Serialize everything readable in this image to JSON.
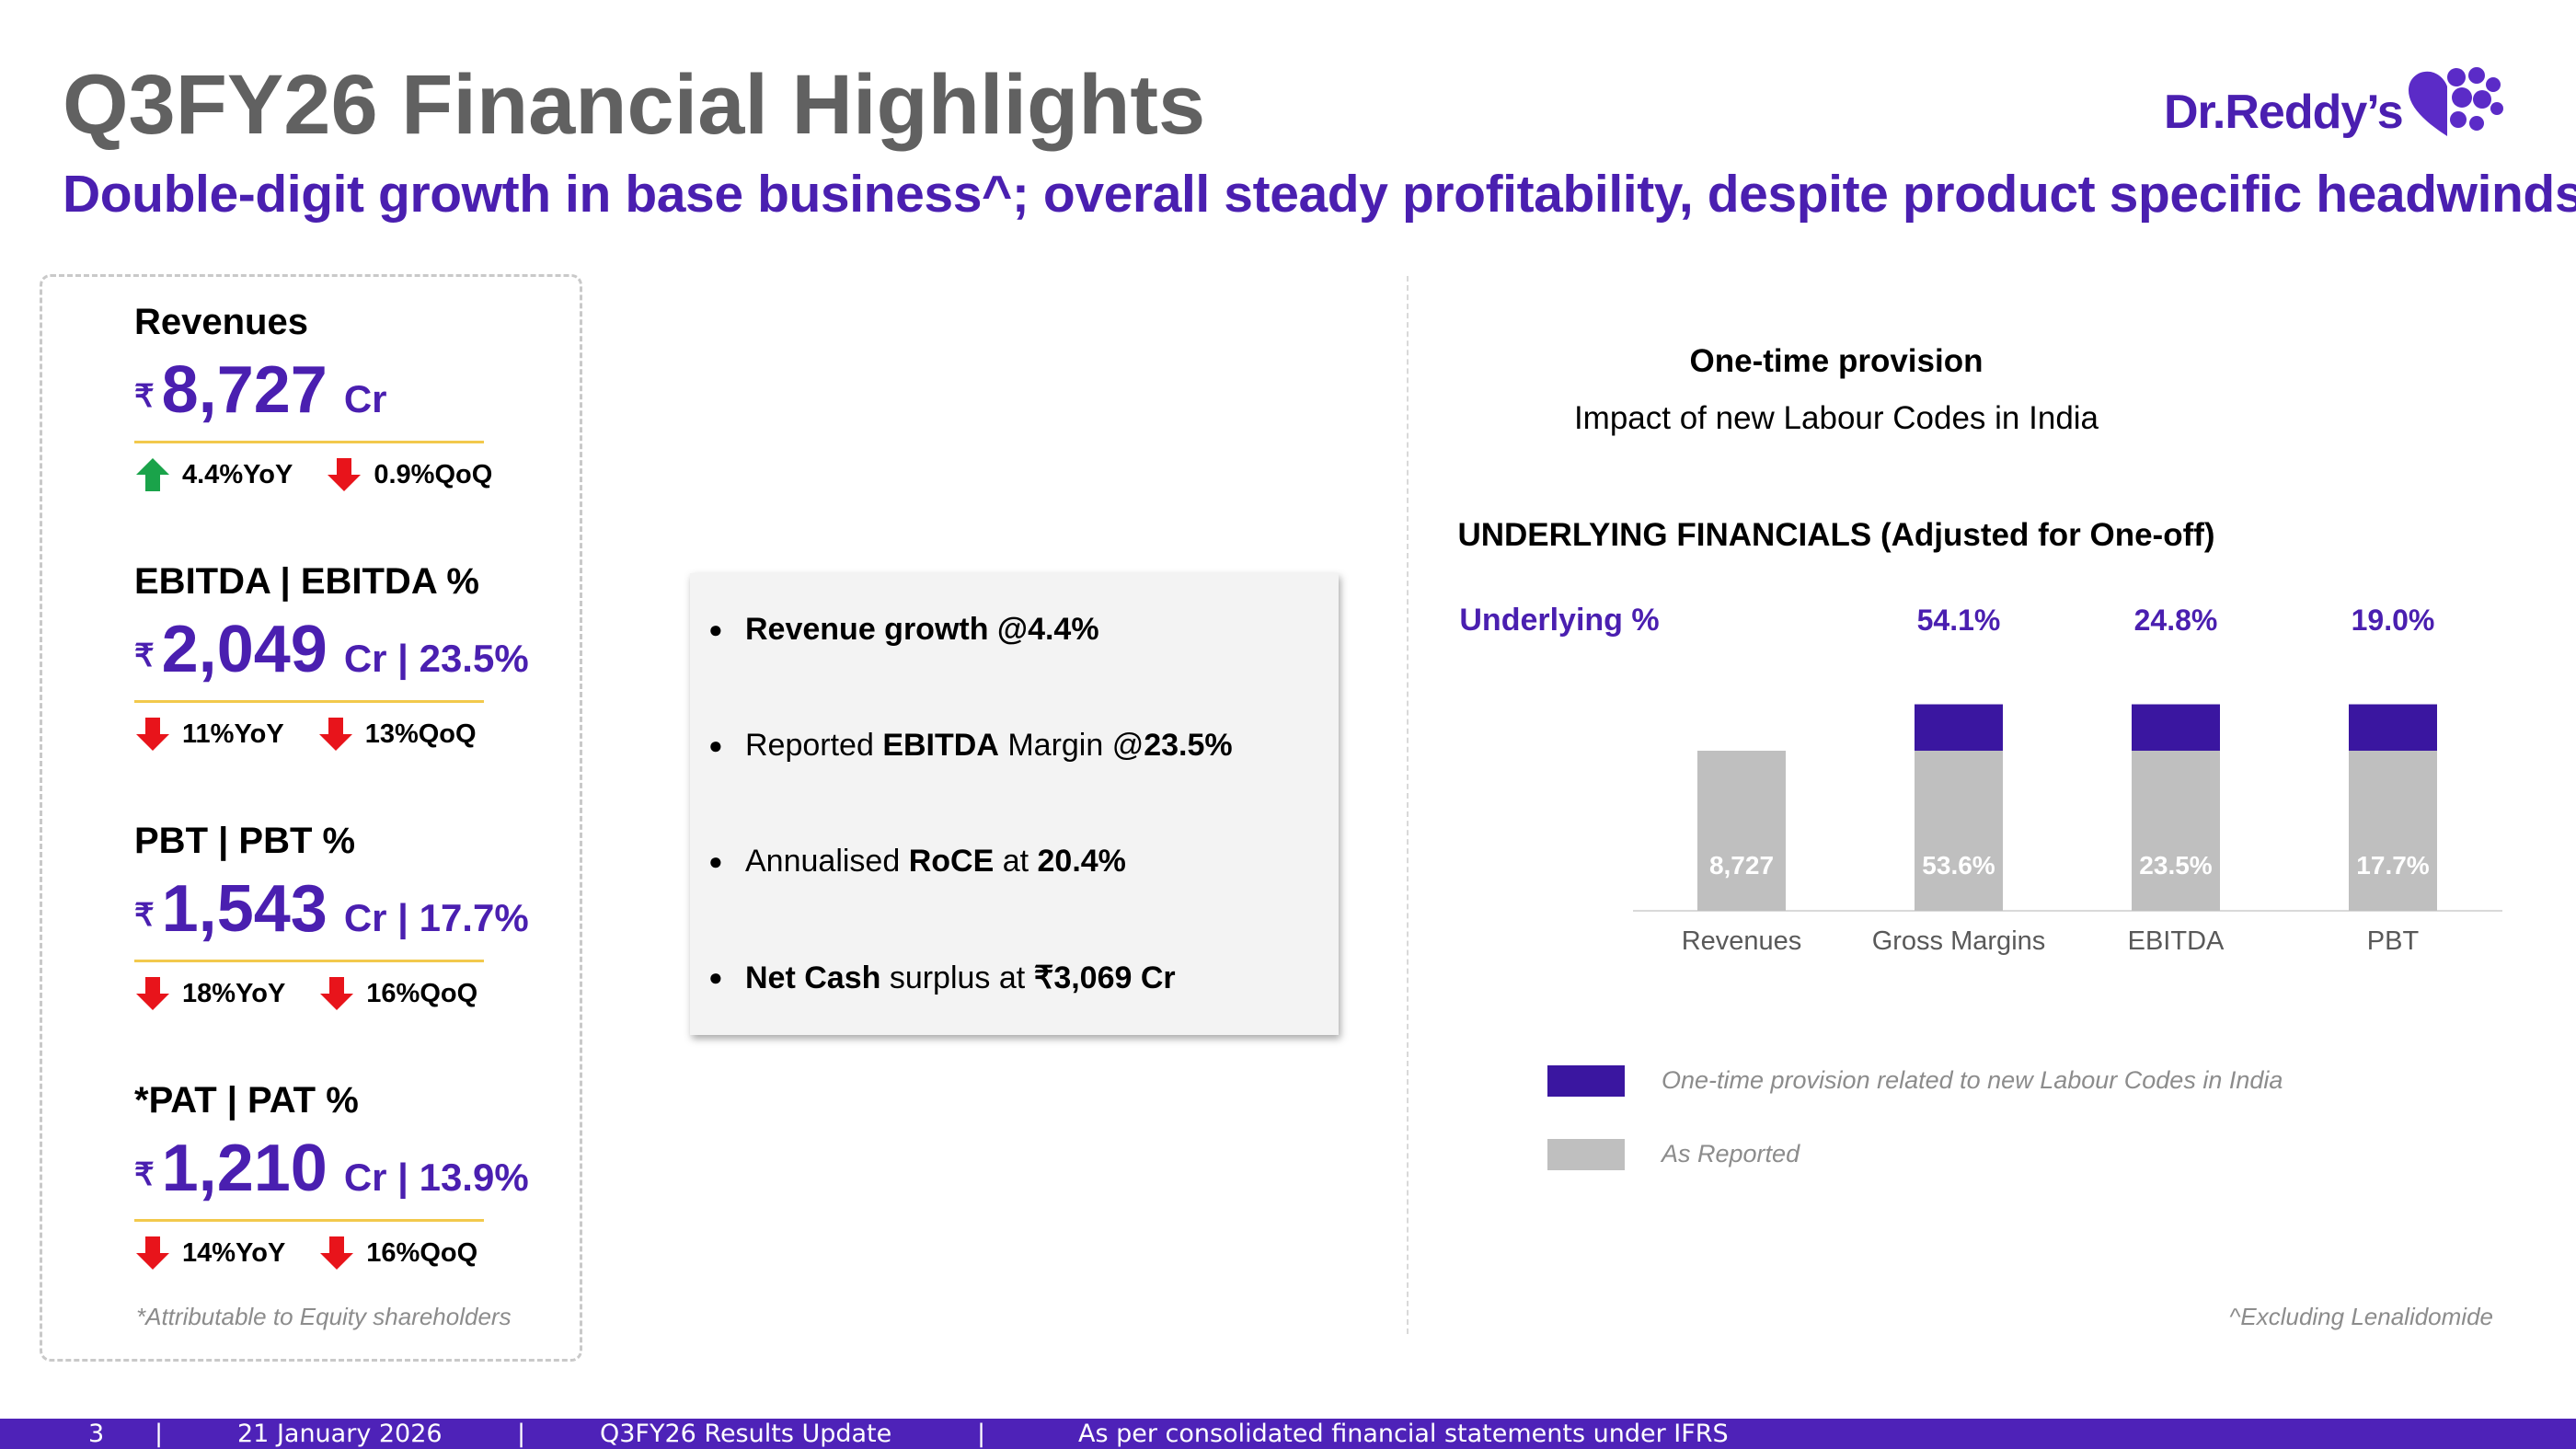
{
  "header": {
    "title": "Q3FY26 Financial Highlights",
    "subtitle": "Double-digit growth in base business^; overall steady profitability, despite product specific headwinds",
    "logo_text": "Dr.Reddy’s"
  },
  "colors": {
    "purple": "#4a1fb0",
    "dark_purple": "#3a16a0",
    "gray_bar": "#bfbfbf",
    "up_arrow": "#1aa34a",
    "down_arrow": "#e8141b",
    "gold_rule": "#f2c94c",
    "footer_bar": "#4e22b8"
  },
  "metrics": [
    {
      "label": "Revenues",
      "rupee": "₹",
      "value": "8,727",
      "unit": "Cr",
      "changes": [
        {
          "dir": "up",
          "text": "4.4%YoY"
        },
        {
          "dir": "down",
          "text": "0.9%QoQ"
        }
      ]
    },
    {
      "label": "EBITDA | EBITDA %",
      "rupee": "₹",
      "value": "2,049",
      "unit": "Cr | 23.5%",
      "changes": [
        {
          "dir": "down",
          "text": "11%YoY"
        },
        {
          "dir": "down",
          "text": "13%QoQ"
        }
      ]
    },
    {
      "label": "PBT | PBT %",
      "rupee": "₹",
      "value": "1,543",
      "unit": "Cr | 17.7%",
      "changes": [
        {
          "dir": "down",
          "text": "18%YoY"
        },
        {
          "dir": "down",
          "text": "16%QoQ"
        }
      ]
    },
    {
      "label": "*PAT | PAT %",
      "rupee": "₹",
      "value": "1,210",
      "unit": "Cr | 13.9%",
      "changes": [
        {
          "dir": "down",
          "text": "14%YoY"
        },
        {
          "dir": "down",
          "text": "16%QoQ"
        }
      ]
    }
  ],
  "footnote_left": "*Attributable to Equity shareholders",
  "highlights": [
    {
      "segments": [
        {
          "text": "Revenue growth @4.4%",
          "bold": true
        }
      ]
    },
    {
      "segments": [
        {
          "text": "Reported ",
          "bold": false
        },
        {
          "text": "EBITDA",
          "bold": true
        },
        {
          "text": " Margin @",
          "bold": false
        },
        {
          "text": "23.5%",
          "bold": true
        }
      ]
    },
    {
      "segments": [
        {
          "text": "Annualised ",
          "bold": false
        },
        {
          "text": "RoCE",
          "bold": true
        },
        {
          "text": " at ",
          "bold": false
        },
        {
          "text": "20.4%",
          "bold": true
        }
      ]
    },
    {
      "segments": [
        {
          "text": "Net Cash",
          "bold": true
        },
        {
          "text": " surplus at ",
          "bold": false
        },
        {
          "text": "₹3,069 Cr",
          "bold": true
        }
      ]
    }
  ],
  "right_panel": {
    "heading1": "One-time provision",
    "heading2": "Impact of new Labour Codes in India",
    "footnote": "^Excluding Lenalidomide"
  },
  "chart_data": {
    "type": "bar",
    "stacked": true,
    "title": "UNDERLYING FINANCIALS (Adjusted for One-off)",
    "row_label": "Underlying %",
    "categories": [
      "Revenues",
      "Gross Margins",
      "EBITDA",
      "PBT"
    ],
    "series": [
      {
        "name": "As Reported",
        "color": "#bfbfbf",
        "labels": [
          "8,727",
          "53.6%",
          "23.5%",
          "17.7%"
        ],
        "values": [
          1,
          1,
          1,
          1
        ]
      },
      {
        "name": "One-time provision related to new Labour Codes in India",
        "color": "#3a16a0",
        "values": [
          0,
          0.29,
          0.29,
          0.29
        ]
      }
    ],
    "underlying_labels": [
      "",
      "54.1%",
      "24.8%",
      "19.0%"
    ],
    "grid": false,
    "legend_position": "bottom-left"
  },
  "footer": {
    "page": "3",
    "date": "21 January 2026",
    "title": "Q3FY26 Results Update",
    "note": "As per consolidated financial statements under IFRS",
    "separator": "|"
  }
}
